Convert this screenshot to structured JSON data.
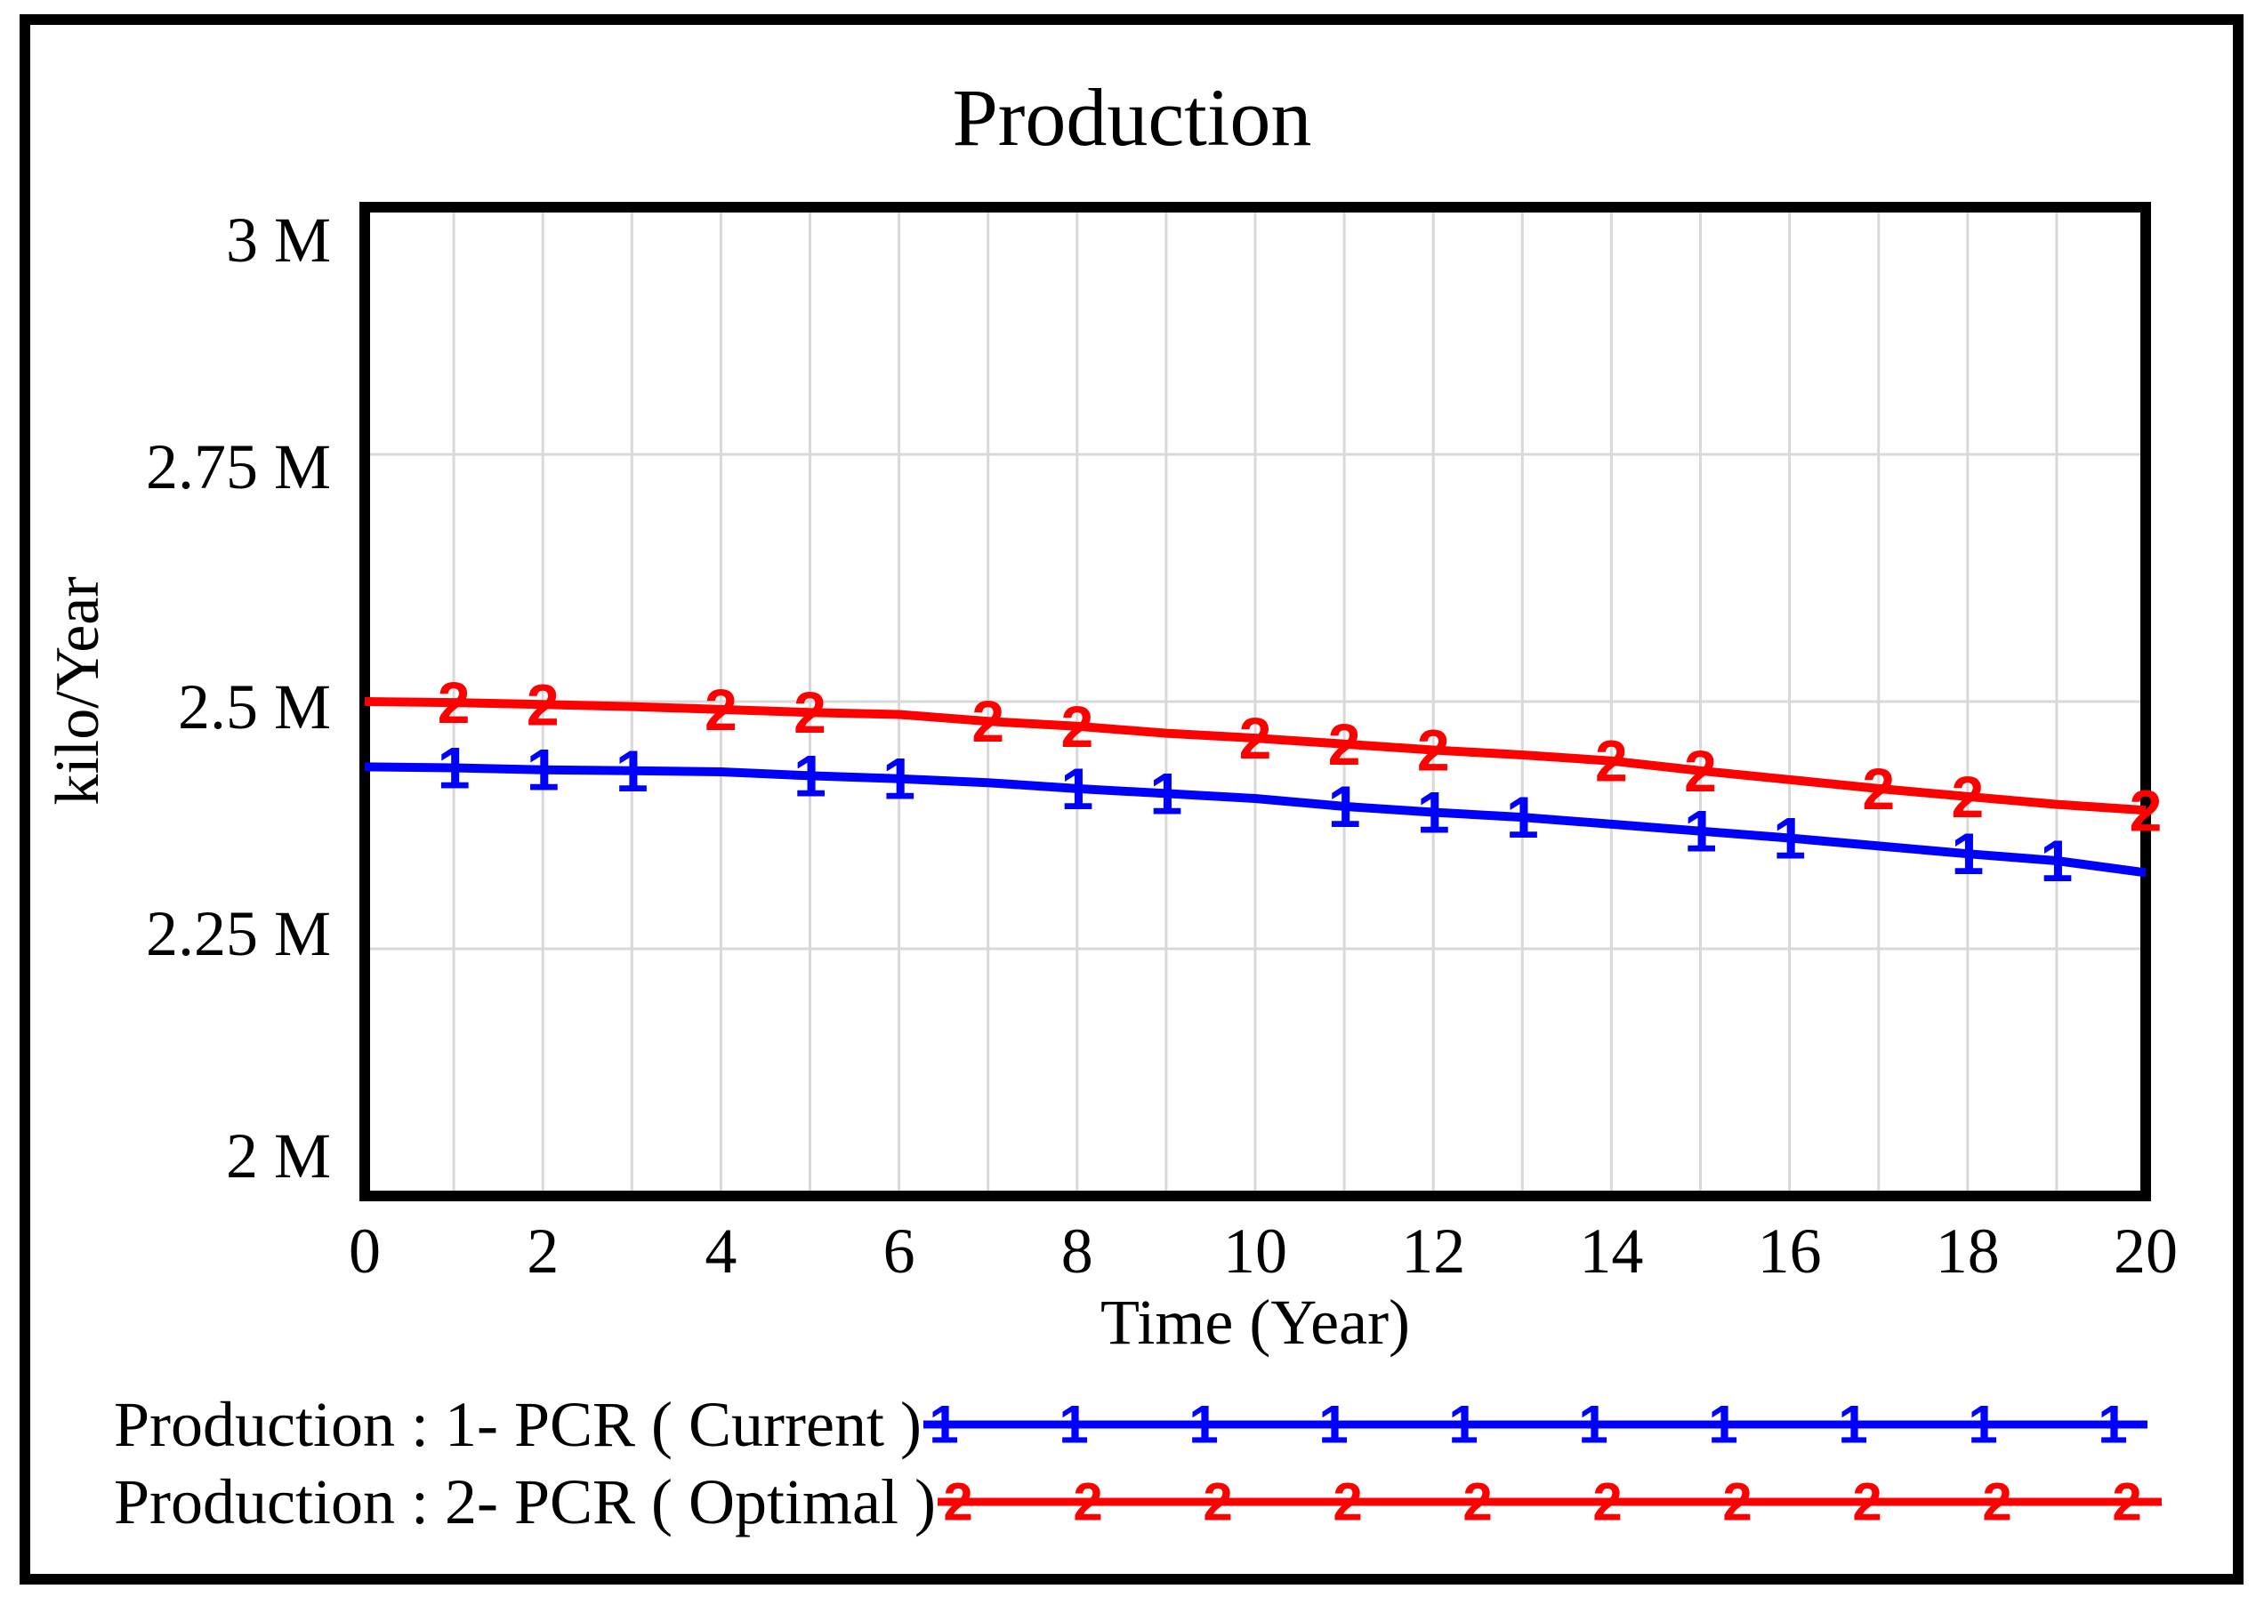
{
  "title": "Production",
  "y_axis": {
    "title": "kilo/Year",
    "ticks": [
      "3 M",
      "2.75 M",
      "2.5 M",
      "2.25 M",
      "2 M"
    ],
    "tick_values": [
      3,
      2.75,
      2.5,
      2.25,
      2
    ]
  },
  "x_axis": {
    "title": "Time (Year)",
    "ticks": [
      0,
      2,
      4,
      6,
      8,
      10,
      12,
      14,
      16,
      18,
      20
    ]
  },
  "chart_data": {
    "type": "line",
    "title": "Production",
    "xlabel": "Time (Year)",
    "ylabel": "kilo/Year",
    "xlim": [
      0,
      20
    ],
    "ylim": [
      2,
      3
    ],
    "ylim_unit": "M",
    "grid": {
      "x_step_years": 1,
      "y_lines_M": [
        2.25,
        2.5,
        2.75
      ]
    },
    "x": [
      0,
      1,
      2,
      3,
      4,
      5,
      6,
      7,
      8,
      9,
      10,
      11,
      12,
      13,
      14,
      15,
      16,
      17,
      18,
      19,
      20
    ],
    "series": [
      {
        "name": "Production : 1- PCR ( Current )",
        "marker": "1",
        "color": "#0000ff",
        "values_M": [
          2.434,
          2.433,
          2.431,
          2.43,
          2.429,
          2.425,
          2.422,
          2.418,
          2.412,
          2.407,
          2.402,
          2.394,
          2.388,
          2.383,
          2.376,
          2.369,
          2.362,
          2.354,
          2.346,
          2.339,
          2.327
        ],
        "marker_years": [
          1,
          2,
          3,
          5,
          6,
          8,
          9,
          11,
          12,
          13,
          15,
          16,
          18,
          19
        ]
      },
      {
        "name": "Production : 2- PCR ( Optimal )",
        "marker": "2",
        "color": "#ff0000",
        "values_M": [
          2.5,
          2.499,
          2.497,
          2.495,
          2.492,
          2.489,
          2.487,
          2.48,
          2.475,
          2.468,
          2.463,
          2.457,
          2.451,
          2.446,
          2.44,
          2.43,
          2.421,
          2.412,
          2.404,
          2.396,
          2.39
        ],
        "marker_years": [
          1,
          2,
          4,
          5,
          7,
          8,
          10,
          11,
          12,
          14,
          15,
          17,
          18,
          20
        ]
      }
    ]
  },
  "legend": {
    "entries": [
      {
        "label": "Production : 1- PCR ( Current )",
        "marker": "1",
        "color": "#0000ff",
        "marker_count": 10
      },
      {
        "label": "Production : 2- PCR ( Optimal )",
        "marker": "2",
        "color": "#ff0000",
        "marker_count": 10
      }
    ]
  },
  "colors": {
    "grid": "#d8d8d8",
    "axis": "#000000",
    "background": "#ffffff",
    "series_current": "#0000ff",
    "series_optimal": "#ff0000"
  }
}
